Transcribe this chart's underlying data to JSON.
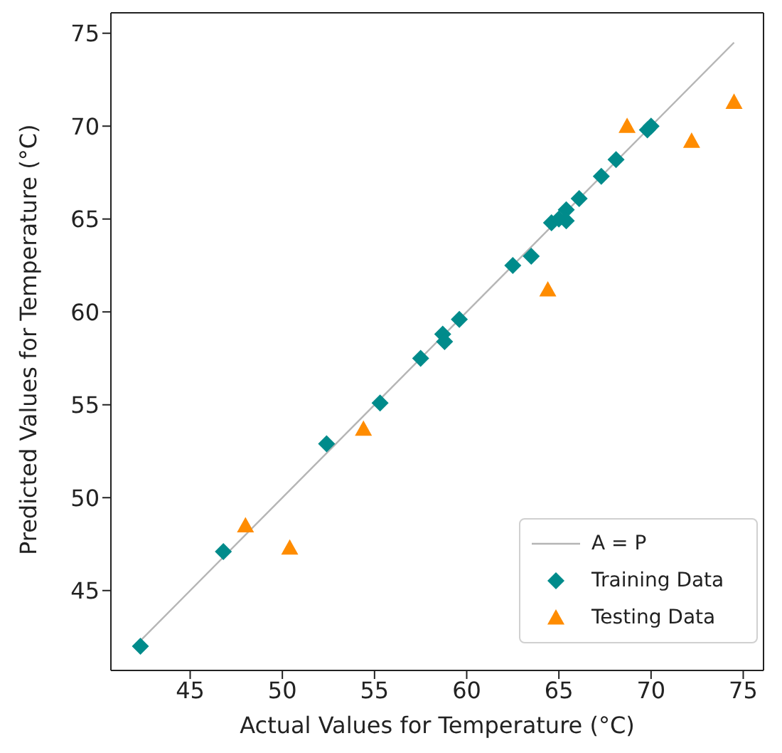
{
  "chart_data": {
    "type": "scatter",
    "xlabel": "Actual Values for Temperature (°C)",
    "ylabel": "Predicted Values for Temperature (°C)",
    "xlim": [
      40.7,
      76.1
    ],
    "ylim": [
      40.7,
      76.1
    ],
    "xticks": [
      45,
      50,
      55,
      60,
      65,
      70,
      75
    ],
    "yticks": [
      45,
      50,
      55,
      60,
      65,
      70,
      75
    ],
    "grid": false,
    "legend": "bottom right",
    "series": [
      {
        "name": "A = P",
        "type": "line",
        "color": "#b5b5b5",
        "marker": "none",
        "x": [
          42.2,
          74.5
        ],
        "values": [
          42.2,
          74.5
        ]
      },
      {
        "name": "Training Data",
        "color": "#008b8b",
        "marker": "diamond",
        "x": [
          42.3,
          46.8,
          52.4,
          55.3,
          57.5,
          58.7,
          58.8,
          59.6,
          62.5,
          63.5,
          64.6,
          65.0,
          65.4,
          65.4,
          66.1,
          67.3,
          68.1,
          69.8,
          70.0
        ],
        "values": [
          42.0,
          47.1,
          52.9,
          55.1,
          57.5,
          58.8,
          58.4,
          59.6,
          62.5,
          63.0,
          64.8,
          65.0,
          65.5,
          64.9,
          66.1,
          67.3,
          68.2,
          69.8,
          70.0
        ]
      },
      {
        "name": "Testing Data",
        "color": "#ff8c00",
        "marker": "triangle",
        "x": [
          48.0,
          50.4,
          54.4,
          64.4,
          68.7,
          72.2,
          74.5
        ],
        "values": [
          48.5,
          47.3,
          53.7,
          61.2,
          70.0,
          69.2,
          71.3
        ]
      }
    ]
  }
}
